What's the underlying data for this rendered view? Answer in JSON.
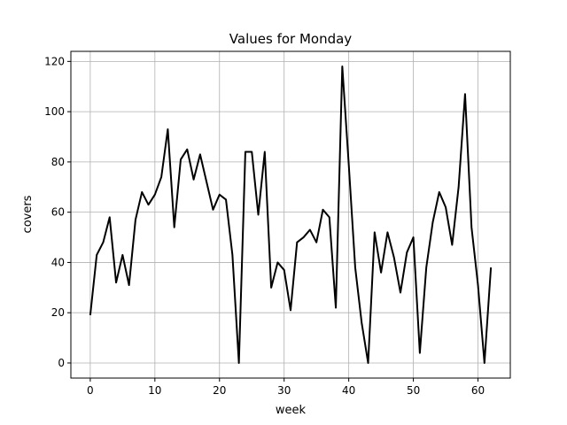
{
  "chart_data": {
    "type": "line",
    "title": "Values for Monday",
    "xlabel": "week",
    "ylabel": "covers",
    "xlim": [
      -3,
      65
    ],
    "ylim": [
      -6,
      124
    ],
    "xticks": [
      0,
      10,
      20,
      30,
      40,
      50,
      60
    ],
    "yticks": [
      0,
      20,
      40,
      60,
      80,
      100,
      120
    ],
    "grid": true,
    "line_color": "#000000",
    "x": [
      0,
      1,
      2,
      3,
      4,
      5,
      6,
      7,
      8,
      9,
      10,
      11,
      12,
      13,
      14,
      15,
      16,
      17,
      18,
      19,
      20,
      21,
      22,
      23,
      24,
      25,
      26,
      27,
      28,
      29,
      30,
      31,
      32,
      33,
      34,
      35,
      36,
      37,
      38,
      39,
      40,
      41,
      42,
      43,
      44,
      45,
      46,
      47,
      48,
      49,
      50,
      51,
      52,
      53,
      54,
      55,
      56,
      57,
      58,
      59,
      60,
      61,
      62
    ],
    "series": [
      {
        "values": [
          19,
          43,
          48,
          58,
          32,
          43,
          31,
          57,
          68,
          63,
          67,
          74,
          93,
          54,
          81,
          85,
          73,
          83,
          72,
          61,
          67,
          65,
          43,
          0,
          84,
          84,
          59,
          84,
          30,
          40,
          37,
          21,
          48,
          50,
          53,
          48,
          61,
          58,
          22,
          118,
          79,
          38,
          16,
          0,
          52,
          36,
          52,
          42,
          28,
          44,
          50,
          4,
          38,
          56,
          68,
          62,
          47,
          70,
          107,
          54,
          31,
          0,
          38
        ]
      }
    ]
  }
}
